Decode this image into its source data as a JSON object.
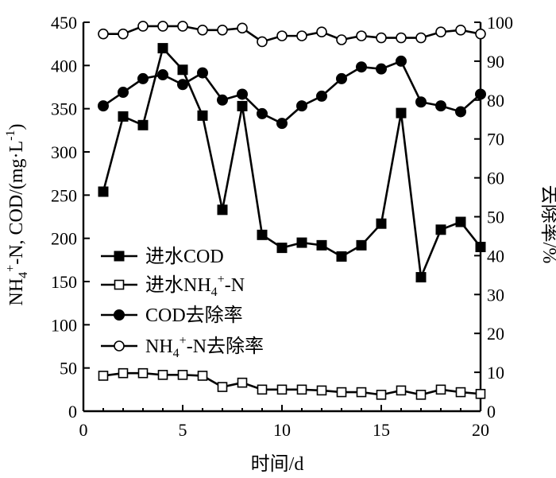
{
  "chart_data": {
    "type": "line",
    "xlabel": "时间/d",
    "ylabel_left": "NH₄⁺-N, COD/(mg·L⁻¹)",
    "ylabel_right": "去除率/%",
    "xlim": [
      0,
      20
    ],
    "ylim_left": [
      0,
      450
    ],
    "ylim_right": [
      0,
      100
    ],
    "x_ticks": [
      "0",
      "5",
      "10",
      "15",
      "20"
    ],
    "y_left_ticks": [
      "0",
      "50",
      "100",
      "150",
      "200",
      "250",
      "300",
      "350",
      "400",
      "450"
    ],
    "y_right_ticks": [
      "0",
      "10",
      "20",
      "30",
      "40",
      "50",
      "60",
      "70",
      "80",
      "90",
      "100"
    ],
    "grid": false,
    "legend_position": "middle-left",
    "x": [
      1,
      2,
      3,
      4,
      5,
      6,
      7,
      8,
      9,
      10,
      11,
      12,
      13,
      14,
      15,
      16,
      17,
      18,
      19,
      20
    ],
    "series": [
      {
        "name": "进水COD",
        "axis": "left",
        "marker": "filled-square",
        "values": [
          254,
          341,
          331,
          420,
          395,
          342,
          233,
          353,
          204,
          189,
          195,
          192,
          179,
          192,
          217,
          345,
          155,
          210,
          219,
          190
        ]
      },
      {
        "name": "进水NH₄⁺-N",
        "axis": "left",
        "marker": "open-square",
        "values": [
          41,
          44,
          44,
          42,
          42,
          41,
          28,
          33,
          25,
          25,
          25,
          24,
          22,
          22,
          19,
          24,
          19,
          25,
          22,
          20
        ]
      },
      {
        "name": "COD去除率",
        "axis": "right",
        "marker": "filled-circle",
        "values": [
          78.5,
          82,
          85.5,
          86.5,
          84,
          87,
          80,
          81.5,
          76.5,
          74,
          78.5,
          81,
          85.5,
          88.5,
          88,
          90,
          79.5,
          78.5,
          77,
          81.5
        ]
      },
      {
        "name": "NH₄⁺-N去除率",
        "axis": "right",
        "marker": "open-circle",
        "values": [
          97,
          97,
          99,
          99,
          99,
          98,
          98,
          98.5,
          95,
          96.5,
          96.5,
          97.5,
          95.5,
          96.5,
          96,
          96,
          96,
          97.5,
          98,
          97
        ]
      }
    ]
  }
}
